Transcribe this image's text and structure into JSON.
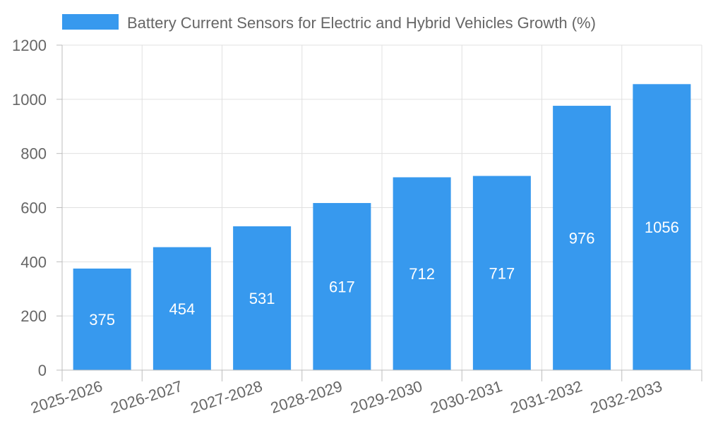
{
  "chart_data": {
    "type": "bar",
    "title": "",
    "xlabel": "",
    "ylabel": "",
    "categories": [
      "2025-2026",
      "2026-2027",
      "2027-2028",
      "2028-2029",
      "2029-2030",
      "2030-2031",
      "2031-2032",
      "2032-2033"
    ],
    "series": [
      {
        "name": "Battery Current Sensors for Electric and Hybrid Vehicles Growth (%)",
        "values": [
          375,
          454,
          531,
          617,
          712,
          717,
          976,
          1056
        ],
        "color": "#3799EE"
      }
    ],
    "yticks": [
      0,
      200,
      400,
      600,
      800,
      1000,
      1200
    ],
    "ylim": [
      0,
      1200
    ],
    "grid": true,
    "legend": "top",
    "data_labels": true
  }
}
